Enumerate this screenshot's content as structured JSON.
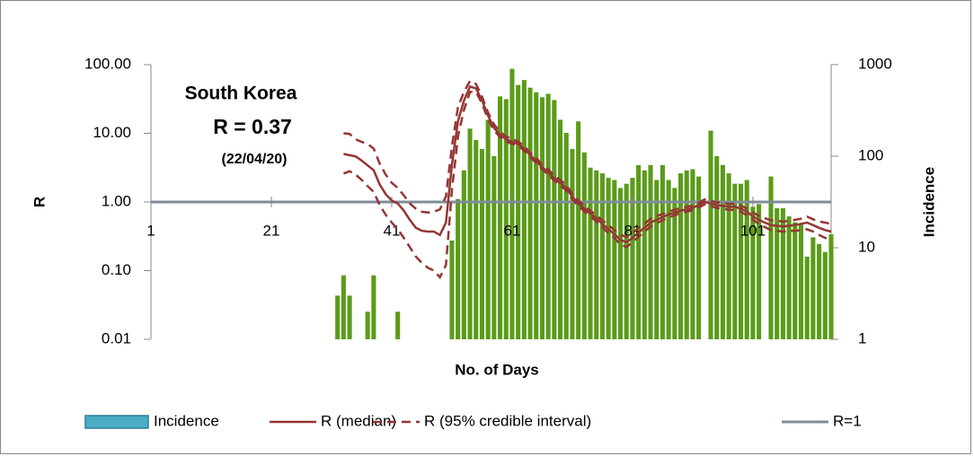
{
  "chart_data": {
    "type": "bar_line_log",
    "annotations": [
      "South Korea",
      "R = 0.37",
      "(22/04/20)"
    ],
    "xlabel": "No. of Days",
    "ylabel": "R",
    "y2label": "Incidence",
    "xlim": [
      1,
      114
    ],
    "xticks": [
      1,
      21,
      41,
      61,
      81,
      101
    ],
    "ylim": [
      0.01,
      100
    ],
    "ylog": true,
    "yticks": [
      {
        "value": 0.01,
        "label": "0.01"
      },
      {
        "value": 0.1,
        "label": "0.10"
      },
      {
        "value": 1,
        "label": "1.00"
      },
      {
        "value": 10,
        "label": "10.00"
      },
      {
        "value": 100,
        "label": "100.00"
      }
    ],
    "y2lim": [
      1,
      1000
    ],
    "y2log": true,
    "y2ticks": [
      1,
      10,
      100,
      1000
    ],
    "legend": "bottom",
    "x": [
      32,
      33,
      34,
      35,
      36,
      37,
      38,
      39,
      40,
      41,
      42,
      43,
      44,
      45,
      46,
      47,
      48,
      49,
      50,
      51,
      52,
      53,
      54,
      55,
      56,
      57,
      58,
      59,
      60,
      61,
      62,
      63,
      64,
      65,
      66,
      67,
      68,
      69,
      70,
      71,
      72,
      73,
      74,
      75,
      76,
      77,
      78,
      79,
      80,
      81,
      82,
      83,
      84,
      85,
      86,
      87,
      88,
      89,
      90,
      91,
      92,
      93,
      94,
      95,
      96,
      97,
      98,
      99,
      100,
      101,
      102,
      103,
      104,
      105,
      106,
      107,
      108,
      109,
      110,
      111,
      112,
      113,
      114
    ],
    "series": [
      {
        "name": "Incidence",
        "kind": "bar",
        "axis": "y2",
        "color": "#5b9b1a",
        "legend_color": "#4bacc6",
        "values": [
          3,
          5,
          3,
          null,
          null,
          2,
          5,
          null,
          null,
          null,
          2,
          null,
          null,
          null,
          null,
          null,
          null,
          null,
          null,
          12,
          34,
          70,
          200,
          150,
          120,
          250,
          100,
          450,
          420,
          900,
          600,
          680,
          560,
          500,
          440,
          480,
          410,
          250,
          180,
          120,
          240,
          110,
          75,
          70,
          65,
          58,
          55,
          45,
          50,
          58,
          80,
          70,
          80,
          55,
          80,
          55,
          45,
          65,
          70,
          72,
          60,
          null,
          190,
          100,
          80,
          65,
          50,
          50,
          55,
          28,
          30,
          null,
          60,
          27,
          27,
          22,
          19,
          18,
          8,
          13,
          11,
          9,
          14
        ]
      },
      {
        "name": "R (median)",
        "kind": "line",
        "axis": "y",
        "color": "#943634",
        "values": [
          null,
          5.0,
          4.8,
          4.6,
          4.0,
          3.4,
          2.9,
          1.8,
          1.3,
          1.05,
          0.95,
          0.75,
          0.55,
          0.42,
          0.38,
          0.37,
          0.37,
          0.33,
          0.5,
          3.5,
          15,
          30,
          48,
          45,
          30,
          18,
          12,
          9.5,
          8.2,
          7.5,
          7.0,
          6.0,
          4.8,
          4.0,
          3.2,
          2.7,
          2.2,
          1.9,
          1.6,
          1.2,
          0.95,
          0.8,
          0.68,
          0.58,
          0.48,
          0.4,
          0.34,
          0.28,
          0.26,
          0.3,
          0.36,
          0.42,
          0.5,
          0.55,
          0.6,
          0.66,
          0.7,
          0.75,
          0.78,
          0.82,
          0.9,
          1.0,
          0.95,
          0.9,
          0.88,
          0.85,
          0.85,
          0.8,
          0.72,
          0.62,
          0.55,
          0.5,
          0.46,
          0.45,
          0.44,
          0.45,
          0.46,
          0.48,
          0.5,
          0.46,
          0.42,
          0.39,
          0.37
        ]
      },
      {
        "name": "R (95% credible interval)",
        "kind": "band_lines",
        "axis": "y",
        "color": "#943634",
        "dashed": true,
        "lower": [
          null,
          2.6,
          2.8,
          2.5,
          2.1,
          1.7,
          1.4,
          0.9,
          0.65,
          0.5,
          0.4,
          0.3,
          0.22,
          0.16,
          0.13,
          0.11,
          0.1,
          0.08,
          0.12,
          1.5,
          9,
          22,
          40,
          40,
          27,
          16,
          11,
          8.8,
          7.6,
          7.0,
          6.6,
          5.6,
          4.5,
          3.7,
          3.0,
          2.5,
          2.05,
          1.75,
          1.47,
          1.1,
          0.87,
          0.73,
          0.62,
          0.52,
          0.43,
          0.35,
          0.3,
          0.24,
          0.22,
          0.26,
          0.31,
          0.37,
          0.44,
          0.49,
          0.54,
          0.6,
          0.64,
          0.69,
          0.72,
          0.76,
          0.83,
          0.92,
          0.87,
          0.82,
          0.8,
          0.77,
          0.77,
          0.72,
          0.64,
          0.55,
          0.48,
          0.43,
          0.39,
          0.38,
          0.37,
          0.38,
          0.38,
          0.39,
          0.4,
          0.37,
          0.33,
          0.3,
          0.28
        ],
        "upper": [
          null,
          10,
          9.8,
          8.2,
          7.5,
          7.0,
          6.0,
          3.6,
          2.5,
          1.9,
          1.6,
          1.25,
          0.95,
          0.8,
          0.72,
          0.7,
          0.72,
          0.78,
          1.2,
          6.5,
          24,
          40,
          58,
          52,
          34,
          20,
          13.5,
          10.5,
          9,
          8.2,
          7.6,
          6.5,
          5.2,
          4.4,
          3.5,
          3.0,
          2.4,
          2.1,
          1.75,
          1.32,
          1.05,
          0.88,
          0.75,
          0.64,
          0.54,
          0.46,
          0.39,
          0.33,
          0.31,
          0.35,
          0.42,
          0.48,
          0.57,
          0.62,
          0.67,
          0.73,
          0.77,
          0.82,
          0.85,
          0.89,
          0.98,
          1.09,
          1.04,
          0.99,
          0.97,
          0.94,
          0.94,
          0.89,
          0.8,
          0.7,
          0.63,
          0.58,
          0.54,
          0.53,
          0.52,
          0.53,
          0.55,
          0.57,
          0.61,
          0.56,
          0.52,
          0.5,
          0.48
        ]
      }
    ],
    "reference_line": {
      "name": "R=1",
      "value": 1,
      "color": "#7f8c99"
    }
  }
}
